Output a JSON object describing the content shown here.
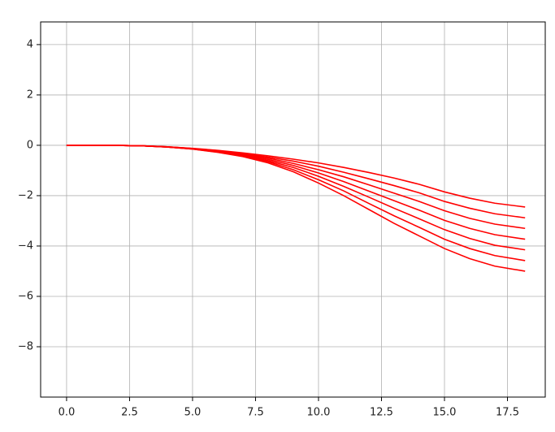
{
  "chart_data": {
    "type": "line",
    "x": [
      0,
      1,
      2,
      3,
      4,
      5,
      6,
      7,
      8,
      9,
      10,
      11,
      12,
      13,
      14,
      15,
      16,
      17,
      18.2
    ],
    "series": [
      {
        "color": "#ff0000",
        "values": [
          0,
          0,
          -0.005,
          -0.02,
          -0.06,
          -0.12,
          -0.2,
          -0.3,
          -0.42,
          -0.55,
          -0.7,
          -0.88,
          -1.08,
          -1.3,
          -1.55,
          -1.85,
          -2.1,
          -2.3,
          -2.45
        ]
      },
      {
        "color": "#ff0000",
        "values": [
          0,
          0,
          -0.005,
          -0.02,
          -0.06,
          -0.13,
          -0.21,
          -0.33,
          -0.47,
          -0.63,
          -0.83,
          -1.07,
          -1.33,
          -1.6,
          -1.89,
          -2.23,
          -2.5,
          -2.72,
          -2.88
        ]
      },
      {
        "color": "#ff0000",
        "values": [
          0,
          0,
          -0.005,
          -0.02,
          -0.06,
          -0.13,
          -0.23,
          -0.35,
          -0.51,
          -0.72,
          -0.97,
          -1.25,
          -1.57,
          -1.9,
          -2.23,
          -2.6,
          -2.9,
          -3.13,
          -3.3
        ]
      },
      {
        "color": "#ff0000",
        "values": [
          0,
          0,
          -0.005,
          -0.02,
          -0.07,
          -0.14,
          -0.24,
          -0.38,
          -0.56,
          -0.8,
          -1.1,
          -1.44,
          -1.82,
          -2.2,
          -2.58,
          -2.98,
          -3.3,
          -3.55,
          -3.73
        ]
      },
      {
        "color": "#ff0000",
        "values": [
          0,
          0,
          -0.005,
          -0.02,
          -0.07,
          -0.14,
          -0.25,
          -0.4,
          -0.61,
          -0.88,
          -1.23,
          -1.63,
          -2.06,
          -2.5,
          -2.92,
          -3.35,
          -3.7,
          -3.97,
          -4.15
        ]
      },
      {
        "color": "#ff0000",
        "values": [
          0,
          0,
          -0.005,
          -0.02,
          -0.07,
          -0.15,
          -0.27,
          -0.43,
          -0.65,
          -0.97,
          -1.37,
          -1.81,
          -2.31,
          -2.8,
          -3.26,
          -3.73,
          -4.1,
          -4.38,
          -4.58
        ]
      },
      {
        "color": "#ff0000",
        "values": [
          0,
          0,
          -0.005,
          -0.02,
          -0.07,
          -0.15,
          -0.28,
          -0.45,
          -0.7,
          -1.05,
          -1.5,
          -2.0,
          -2.55,
          -3.1,
          -3.6,
          -4.1,
          -4.5,
          -4.8,
          -5.0
        ]
      }
    ],
    "xlim": [
      -1.03,
      19.0
    ],
    "ylim": [
      -10,
      4.9
    ],
    "xticks": [
      {
        "value": 0,
        "label": "0.0"
      },
      {
        "value": 2.5,
        "label": "2.5"
      },
      {
        "value": 5,
        "label": "5.0"
      },
      {
        "value": 7.5,
        "label": "7.5"
      },
      {
        "value": 10,
        "label": "10.0"
      },
      {
        "value": 12.5,
        "label": "12.5"
      },
      {
        "value": 15,
        "label": "15.0"
      },
      {
        "value": 17.5,
        "label": "17.5"
      }
    ],
    "yticks": [
      {
        "value": -8,
        "label": "−8"
      },
      {
        "value": -6,
        "label": "−6"
      },
      {
        "value": -4,
        "label": "−4"
      },
      {
        "value": -2,
        "label": "−2"
      },
      0,
      2,
      4
    ],
    "grid": true
  }
}
